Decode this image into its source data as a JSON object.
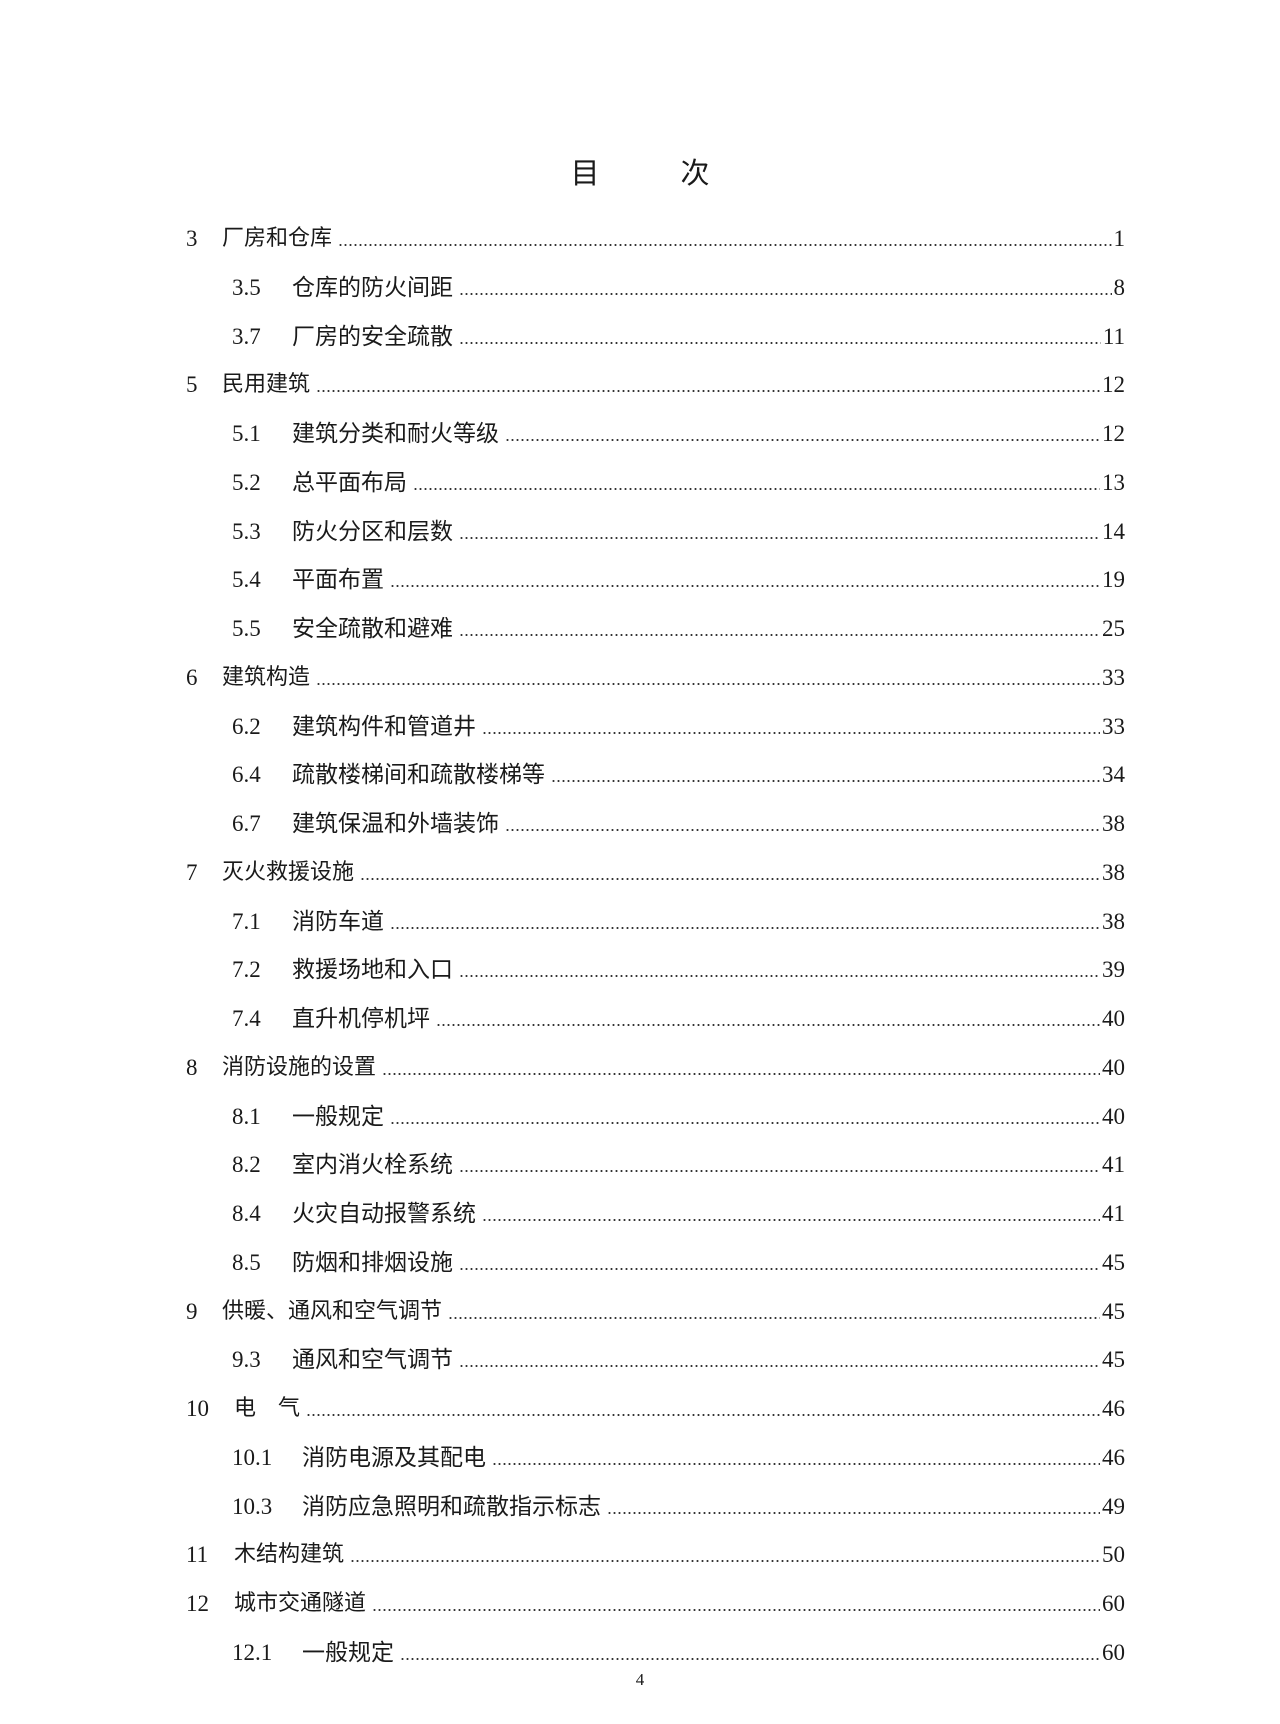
{
  "title": "目　次",
  "entries": [
    {
      "level": 1,
      "num": "3",
      "label": "厂房和仓库",
      "page": "1"
    },
    {
      "level": 2,
      "num": "3.5",
      "label": "仓库的防火间距",
      "page": "8"
    },
    {
      "level": 2,
      "num": "3.7",
      "label": "厂房的安全疏散",
      "page": "11"
    },
    {
      "level": 1,
      "num": "5",
      "label": "民用建筑",
      "page": "12"
    },
    {
      "level": 2,
      "num": "5.1",
      "label": "建筑分类和耐火等级",
      "page": "12"
    },
    {
      "level": 2,
      "num": "5.2",
      "label": "总平面布局",
      "page": "13"
    },
    {
      "level": 2,
      "num": "5.3",
      "label": "防火分区和层数",
      "page": "14"
    },
    {
      "level": 2,
      "num": "5.4",
      "label": "平面布置",
      "page": "19"
    },
    {
      "level": 2,
      "num": "5.5",
      "label": "安全疏散和避难",
      "page": "25"
    },
    {
      "level": 1,
      "num": "6",
      "label": "建筑构造",
      "page": "33"
    },
    {
      "level": 2,
      "num": "6.2",
      "label": "建筑构件和管道井",
      "page": "33"
    },
    {
      "level": 2,
      "num": "6.4",
      "label": "疏散楼梯间和疏散楼梯等",
      "page": "34"
    },
    {
      "level": 2,
      "num": "6.7",
      "label": "建筑保温和外墙装饰",
      "page": "38"
    },
    {
      "level": 1,
      "num": "7",
      "label": "灭火救援设施",
      "page": "38"
    },
    {
      "level": 2,
      "num": "7.1",
      "label": "消防车道",
      "page": "38"
    },
    {
      "level": 2,
      "num": "7.2",
      "label": "救援场地和入口",
      "page": "39"
    },
    {
      "level": 2,
      "num": "7.4",
      "label": "直升机停机坪",
      "page": "40"
    },
    {
      "level": 1,
      "num": "8",
      "label": "消防设施的设置",
      "page": "40"
    },
    {
      "level": 2,
      "num": "8.1",
      "label": "一般规定",
      "page": "40"
    },
    {
      "level": 2,
      "num": "8.2",
      "label": "室内消火栓系统",
      "page": "41"
    },
    {
      "level": 2,
      "num": "8.4",
      "label": "火灾自动报警系统",
      "page": "41"
    },
    {
      "level": 2,
      "num": "8.5",
      "label": "防烟和排烟设施",
      "page": "45"
    },
    {
      "level": 1,
      "num": "9",
      "label": "供暖、通风和空气调节",
      "page": "45"
    },
    {
      "level": 2,
      "num": "9.3",
      "label": "通风和空气调节",
      "page": "45"
    },
    {
      "level": 1,
      "num": "10",
      "label": "电　气",
      "page": "46"
    },
    {
      "level": 2,
      "num": "10.1",
      "label": "消防电源及其配电",
      "page": "46"
    },
    {
      "level": 2,
      "num": "10.3",
      "label": "消防应急照明和疏散指示标志",
      "page": "49"
    },
    {
      "level": 1,
      "num": "11",
      "label": "木结构建筑",
      "page": "50"
    },
    {
      "level": 1,
      "num": "12",
      "label": "城市交通隧道",
      "page": "60"
    },
    {
      "level": 2,
      "num": "12.1",
      "label": "一般规定",
      "page": "60"
    }
  ],
  "page_number": "4"
}
